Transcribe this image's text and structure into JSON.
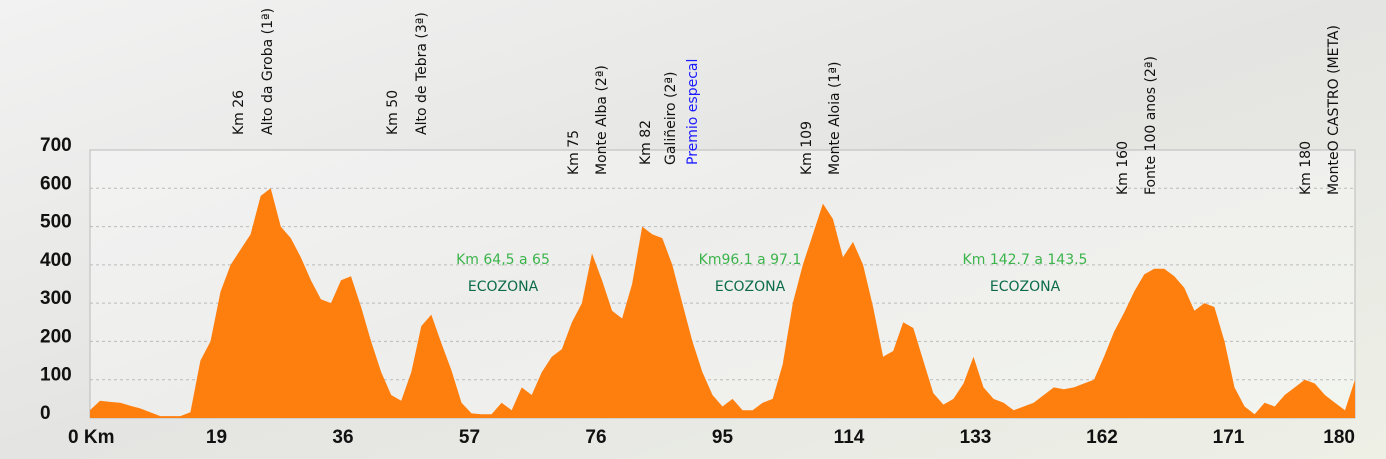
{
  "chart_data": {
    "type": "area",
    "color": "#ff7f0e",
    "ylim": [
      0,
      700
    ],
    "yticks": [
      0,
      100,
      200,
      300,
      400,
      500,
      600,
      700
    ],
    "grid": true,
    "x_tick_labels": [
      "0 Km",
      "19",
      "36",
      "57",
      "76",
      "95",
      "114",
      "133",
      "162",
      "171",
      "180"
    ],
    "values": [
      20,
      45,
      42,
      40,
      32,
      25,
      15,
      5,
      5,
      5,
      15,
      150,
      200,
      330,
      400,
      440,
      480,
      580,
      600,
      500,
      470,
      420,
      360,
      310,
      300,
      360,
      370,
      290,
      200,
      120,
      60,
      45,
      120,
      240,
      270,
      195,
      125,
      40,
      12,
      10,
      10,
      40,
      20,
      80,
      60,
      120,
      160,
      180,
      250,
      300,
      430,
      360,
      280,
      260,
      350,
      500,
      480,
      470,
      400,
      300,
      200,
      120,
      60,
      30,
      50,
      20,
      20,
      40,
      50,
      140,
      300,
      400,
      480,
      560,
      520,
      420,
      460,
      400,
      290,
      160,
      175,
      250,
      235,
      150,
      65,
      35,
      50,
      90,
      160,
      80,
      50,
      40,
      20,
      30,
      40,
      60,
      80,
      75,
      80,
      90,
      100,
      160,
      225,
      275,
      330,
      375,
      390,
      390,
      370,
      340,
      280,
      300,
      290,
      200,
      80,
      30,
      10,
      40,
      30,
      60,
      80,
      100,
      90,
      60,
      40,
      20,
      100
    ],
    "climbs": [
      {
        "km": "Km 26",
        "name": "Alto da Groba (1ª)"
      },
      {
        "km": "Km 50",
        "name": "Alto de Tebra (3ª)"
      },
      {
        "km": "Km 75",
        "name": "Monte Alba (2ª)"
      },
      {
        "km": "Km 82",
        "name": "Galiñeiro (2ª)",
        "note": "Premio especal"
      },
      {
        "km": "Km 109",
        "name": "Monte Aloia (1ª)"
      },
      {
        "km": "Km 160",
        "name": "Fonte 100 anos (2ª)"
      },
      {
        "km": "Km 180",
        "name": "MonteO CASTRO (META)"
      }
    ],
    "ecozones": [
      {
        "range": "Km 64,5 a 65",
        "label": "ECOZONA"
      },
      {
        "range": "Km96.1 a 97.1",
        "label": "ECOZONA"
      },
      {
        "range": "Km 142.7 a 143.5",
        "label": "ECOZONA"
      }
    ]
  }
}
